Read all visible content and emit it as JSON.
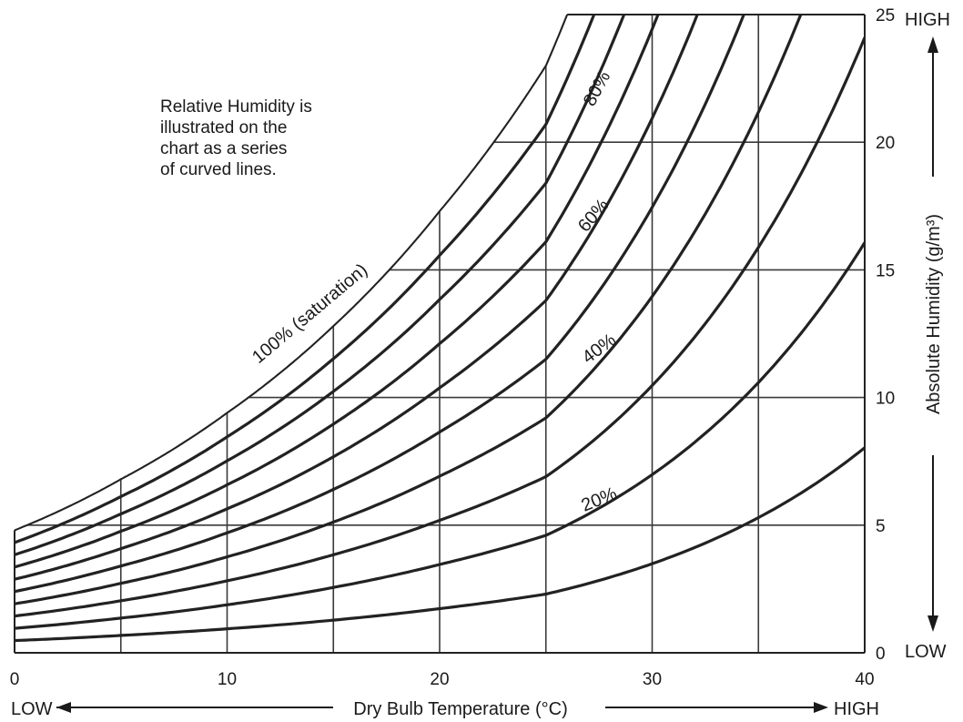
{
  "chart_data": {
    "type": "line",
    "xlabel": "Dry Bulb Temperature (°C)",
    "ylabel": "Absolute Humidity (g/m³)",
    "x_low": "LOW",
    "x_high": "HIGH",
    "y_low": "LOW",
    "y_high": "HIGH",
    "xlim": [
      0,
      40
    ],
    "ylim": [
      0,
      25
    ],
    "x_ticks": [
      "0",
      "10",
      "20",
      "30",
      "40"
    ],
    "y_ticks": [
      "0",
      "5",
      "10",
      "15",
      "20",
      "25"
    ],
    "annotation": "Relative Humidity is illustrated on the chart as a series of curved lines.",
    "annotation_lines": [
      "Relative Humidity is",
      "illustrated on the",
      "chart as a series",
      "of curved lines."
    ],
    "curve_labels": [
      {
        "text": "100% (saturation)",
        "rh": 100
      },
      {
        "text": "80%",
        "rh": 80
      },
      {
        "text": "60%",
        "rh": 60
      },
      {
        "text": "40%",
        "rh": 40
      },
      {
        "text": "20%",
        "rh": 20
      }
    ],
    "relative_humidity_levels": [
      10,
      20,
      30,
      40,
      50,
      60,
      70,
      80,
      90,
      100
    ],
    "saturation_curve": {
      "x": [
        0,
        5,
        10,
        15,
        20,
        25,
        26
      ],
      "y": [
        4.8,
        6.8,
        9.4,
        12.8,
        17.3,
        23.0,
        25.0
      ]
    },
    "grid": true
  }
}
